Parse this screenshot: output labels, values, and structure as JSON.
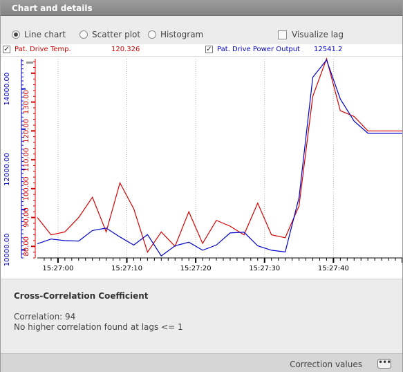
{
  "panel": {
    "title": "Chart and details"
  },
  "toolbar": {
    "line_chart": "Line chart",
    "scatter_plot": "Scatter plot",
    "histogram": "Histogram",
    "selected": "Line chart",
    "visualize_lag": "Visualize lag",
    "visualize_lag_checked": false
  },
  "legend": {
    "series1": {
      "name": "Pat. Drive Temp.",
      "value": "120.326",
      "checked": true,
      "color": "#d40000"
    },
    "series2": {
      "name": "Pat. Drive Power Output",
      "value": "12541.2",
      "checked": true,
      "color": "#0000c8"
    }
  },
  "chart_data": {
    "type": "line",
    "x": [
      "15:26:57",
      "15:26:59",
      "15:27:01",
      "15:27:03",
      "15:27:05",
      "15:27:07",
      "15:27:09",
      "15:27:11",
      "15:27:13",
      "15:27:15",
      "15:27:17",
      "15:27:19",
      "15:27:21",
      "15:27:23",
      "15:27:25",
      "15:27:27",
      "15:27:29",
      "15:27:31",
      "15:27:33",
      "15:27:35",
      "15:27:37",
      "15:27:39",
      "15:27:41",
      "15:27:43",
      "15:27:45",
      "15:27:47",
      "15:27:49",
      "15:27:50"
    ],
    "x_ticks": [
      "15:27:00",
      "15:27:10",
      "15:27:20",
      "15:27:30",
      "15:27:40"
    ],
    "series": [
      {
        "name": "Pat. Drive Temp.",
        "color": "#d40000",
        "values": [
          90,
          84,
          85,
          90,
          97,
          85,
          102,
          93,
          78,
          85,
          80,
          92,
          81,
          89,
          87,
          84,
          95,
          84,
          83,
          94,
          132,
          145,
          127,
          125,
          120,
          120,
          120,
          120
        ]
      },
      {
        "name": "Pat. Drive Power Output",
        "color": "#0000c8",
        "values": [
          10150,
          10270,
          10230,
          10220,
          10480,
          10540,
          10320,
          10120,
          10380,
          9850,
          10100,
          10190,
          9990,
          10120,
          10420,
          10440,
          10100,
          9990,
          9950,
          11300,
          14290,
          14720,
          13750,
          13200,
          12900,
          12900,
          12900,
          12900
        ]
      }
    ],
    "y_left": {
      "color": "#0000c8",
      "ticks": [
        "10000.00",
        "12000.00",
        "14000.00"
      ],
      "range": [
        9800,
        14750
      ]
    },
    "y_right": {
      "color": "#d40000",
      "ticks": [
        "80.00",
        "90.00",
        "100.00",
        "110.00",
        "120.00",
        "130.00"
      ],
      "range": [
        76,
        145
      ]
    },
    "grid": "vertical dotted at labelled x ticks"
  },
  "details": {
    "heading": "Cross-Correlation Coefficient",
    "correlation": "Correlation: 94",
    "lag_note": "No higher correlation found at lags <= 1"
  },
  "footer": {
    "correction_values": "Correction values",
    "more_icon": "ellipsis-icon"
  }
}
